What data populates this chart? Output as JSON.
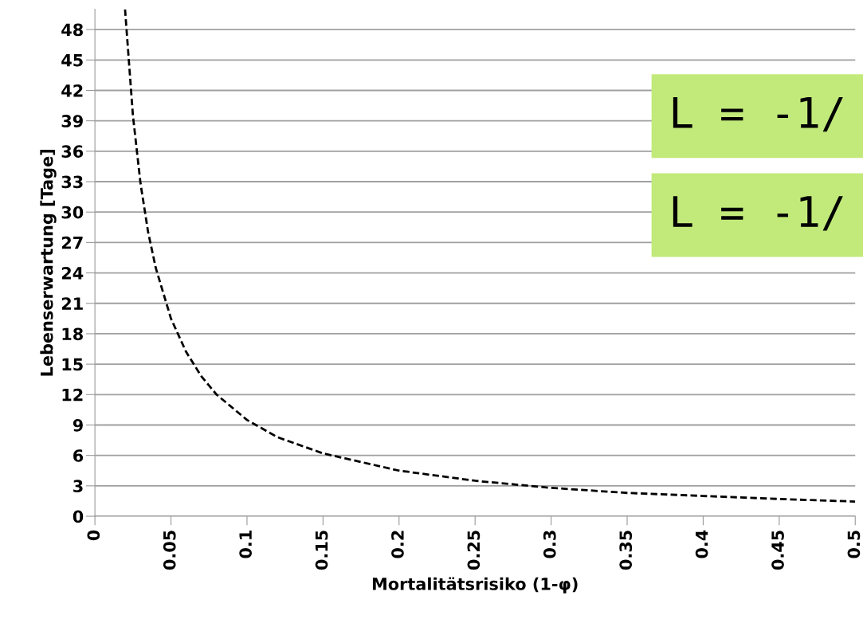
{
  "chart_data": {
    "type": "line",
    "xlabel": "Mortalitätsrisiko (1-φ)",
    "ylabel": "Lebenserwartung [Tage]",
    "x": [
      0.0198,
      0.025,
      0.03,
      0.035,
      0.04,
      0.05,
      0.06,
      0.07,
      0.08,
      0.1,
      0.12,
      0.15,
      0.2,
      0.25,
      0.3,
      0.35,
      0.4,
      0.45,
      0.5
    ],
    "series": [
      {
        "color": "#000000",
        "values": [
          50,
          39.5,
          32.8,
          28,
          24.5,
          19.5,
          16.2,
          13.8,
          12,
          9.5,
          7.8,
          6.2,
          4.5,
          3.5,
          2.8,
          2.3,
          2.0,
          1.7,
          1.45
        ]
      }
    ],
    "line_style": "dashed",
    "xlim": [
      0,
      0.5
    ],
    "xticks": [
      0,
      0.05,
      0.1,
      0.15,
      0.2,
      0.25,
      0.3,
      0.35,
      0.4,
      0.45,
      0.5
    ],
    "ylim": [
      0,
      50
    ],
    "yticks": [
      0,
      3,
      6,
      9,
      12,
      15,
      18,
      21,
      24,
      27,
      30,
      33,
      36,
      39,
      42,
      45,
      48
    ],
    "grid": "y",
    "annotations": [
      "L = -1/",
      "L = -1/"
    ]
  }
}
